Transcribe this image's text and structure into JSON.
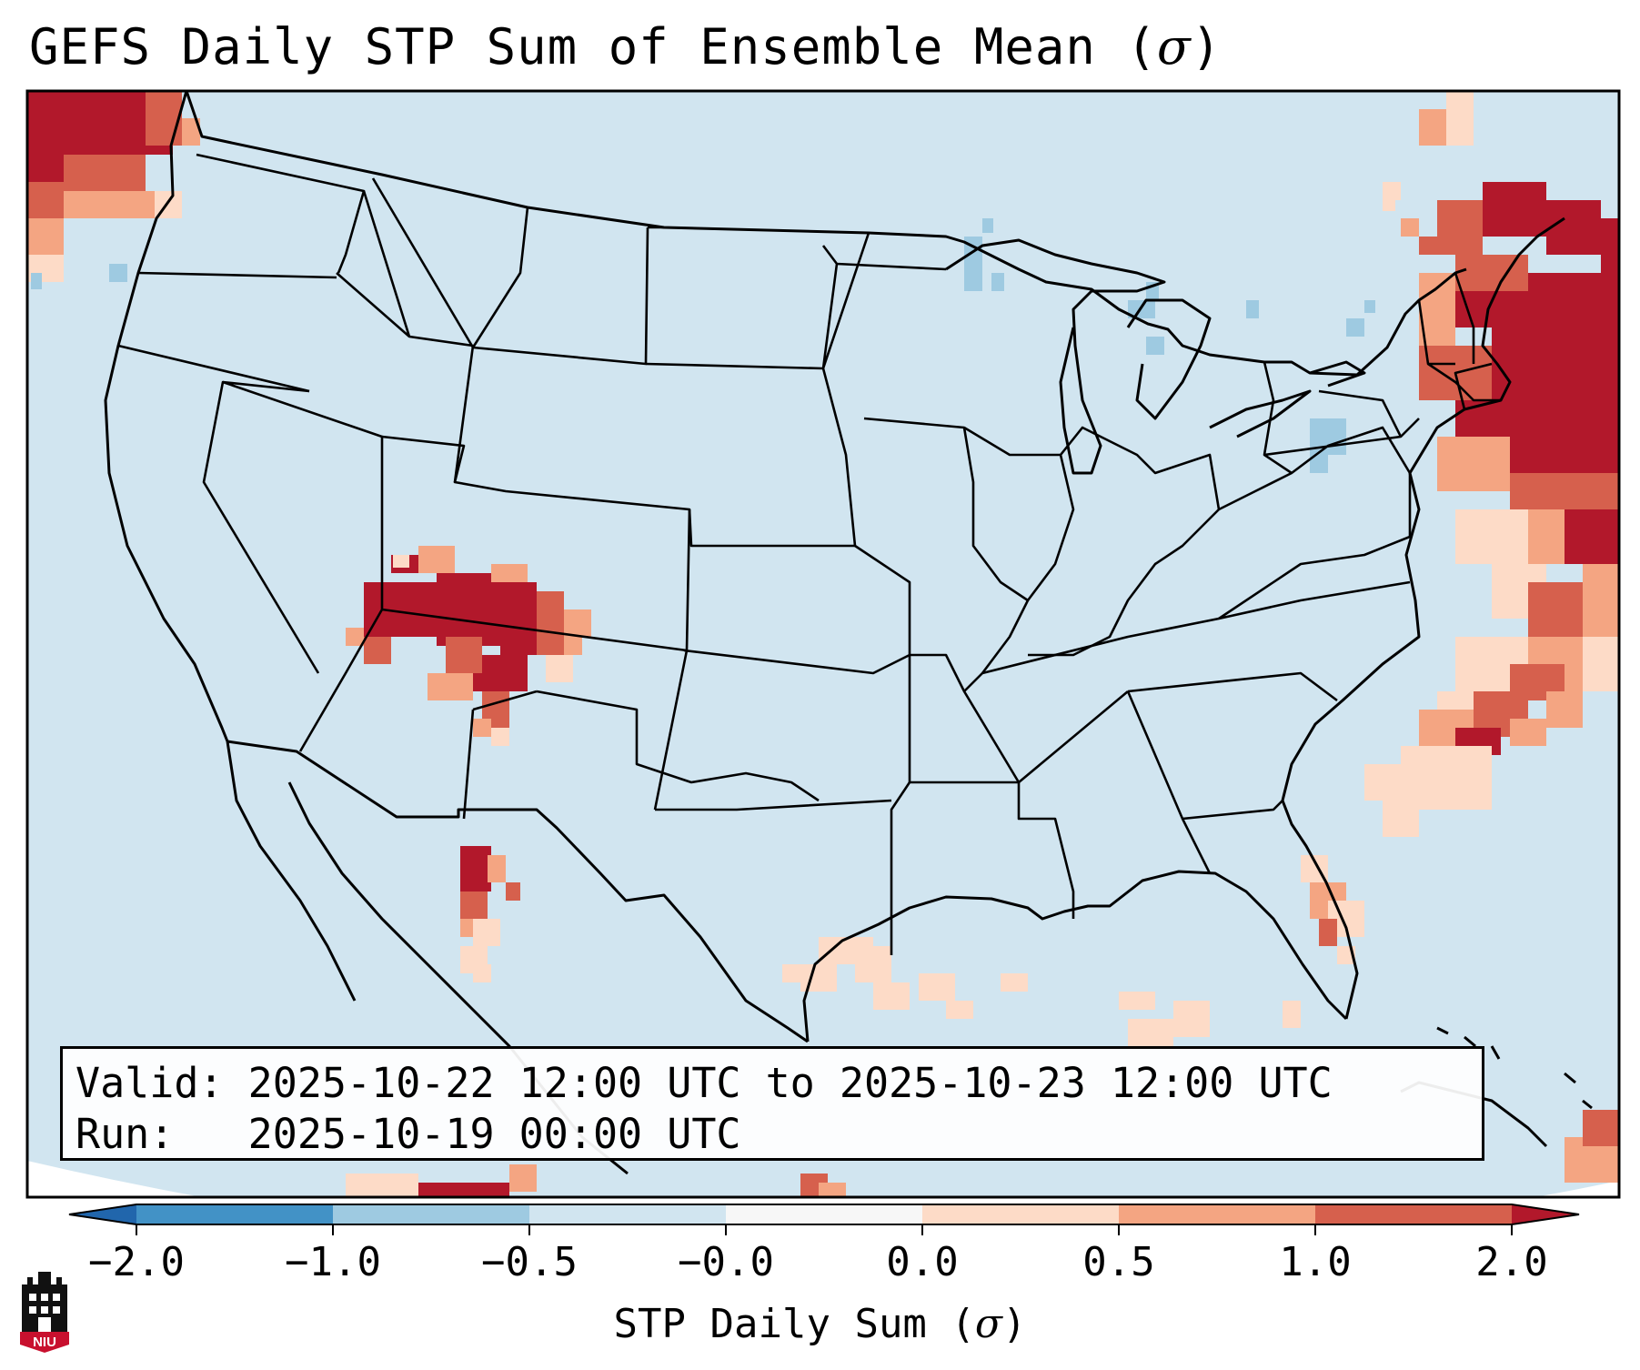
{
  "title": {
    "main": "GEFS Daily STP Sum of Ensemble Mean (",
    "sigma": "σ",
    "close": ")"
  },
  "info": {
    "valid_label": "Valid:",
    "valid_text": "2025-10-22 12:00 UTC to 2025-10-23 12:00 UTC",
    "run_label": "Run:",
    "run_text": "2025-10-19 00:00 UTC"
  },
  "colorbar": {
    "label_main": "STP Daily Sum (",
    "label_sigma": "σ",
    "label_close": ")",
    "ticks": [
      "−2.0",
      "−1.0",
      "−0.5",
      "−0.0",
      "0.0",
      "0.5",
      "1.0",
      "2.0"
    ],
    "colors": [
      "#4292c6",
      "#9ecae1",
      "#d1e5f0",
      "#f7f7f7",
      "#fddbc7",
      "#f4a582",
      "#d6604d"
    ],
    "under_color": "#2166ac",
    "over_color": "#b2182b"
  },
  "map": {
    "ocean_color": "#d1e5f0",
    "palette": {
      "a": "#fddbc7",
      "b": "#f4a582",
      "c": "#d6604d",
      "d": "#b2182b",
      "e": "#9ecae1"
    }
  },
  "logo": {
    "text": "NIU",
    "color": "#c8102e"
  }
}
